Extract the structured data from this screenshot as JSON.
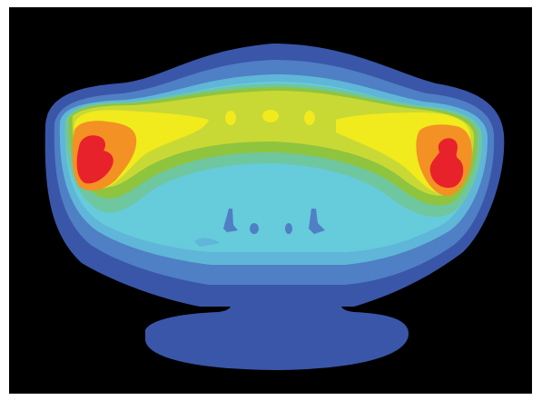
{
  "image": {
    "description_icon": "thermal-contour-plot",
    "background_color": "#000000",
    "palette": {
      "outer_blue": "#3a56a8",
      "mid_blue": "#4f7fc4",
      "light_blue": "#5fb6d8",
      "cyan": "#66cbdb",
      "teal_green": "#6fc7a0",
      "green": "#8fc43f",
      "yellow_green": "#c8d935",
      "yellow": "#f1ea1c",
      "orange": "#f39124",
      "red": "#e8222a"
    }
  }
}
